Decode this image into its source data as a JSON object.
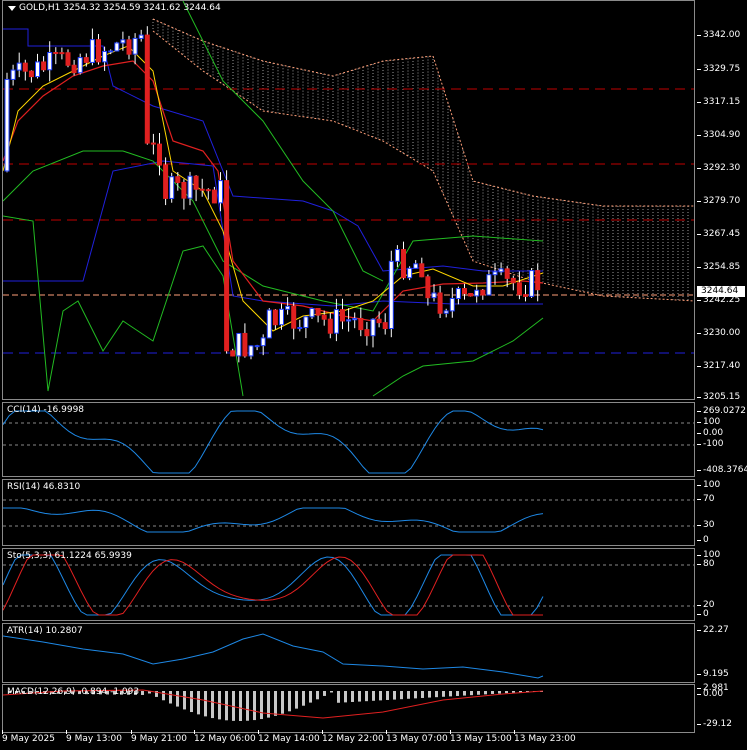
{
  "colors": {
    "bull": "#1f3fff",
    "bear": "#e02020",
    "ma_fast": "#ffd700",
    "ma_slow": "#e02020",
    "band_outer": "#22bb22",
    "channel": "#2020dd",
    "cloud": "#ffa07a",
    "osc": "#1e88e5",
    "signal": "#e02020",
    "level_dash": "#c00000"
  },
  "main": {
    "symbol_label": "GOLD,H1  3254.32 3254.59 3241.62 3244.64",
    "current_price": "3244.64",
    "price_ticks": [
      "3342.00",
      "3329.75",
      "3317.15",
      "3304.90",
      "3292.30",
      "3279.70",
      "3267.45",
      "3254.85",
      "3242.25",
      "3230.00",
      "3217.40",
      "3205.15"
    ]
  },
  "cci": {
    "label": "CCI(14) -16.9998",
    "ticks": [
      "269.0272",
      "100",
      "0.00",
      "-100",
      "-408.3764"
    ]
  },
  "rsi": {
    "label": "RSI(14) 46.8310",
    "ticks": [
      "100",
      "70",
      "30",
      "0"
    ]
  },
  "sto": {
    "label": "Sto(5,3,3) 61.1224 65.9939",
    "ticks": [
      "100",
      "80",
      "20",
      "0"
    ]
  },
  "atr": {
    "label": "ATR(14) 10.2807",
    "ticks": [
      "22.27",
      "9.195"
    ]
  },
  "macd": {
    "label": "MACD(12,26,9) -0.894 -1.093",
    "ticks": [
      "2.981",
      "0.00",
      "-29.12"
    ]
  },
  "time_axis": [
    "9 May 2025",
    "9 May 13:00",
    "9 May 21:00",
    "12 May 06:00",
    "12 May 14:00",
    "12 May 22:00",
    "13 May 07:00",
    "13 May 15:00",
    "13 May 23:00"
  ]
}
